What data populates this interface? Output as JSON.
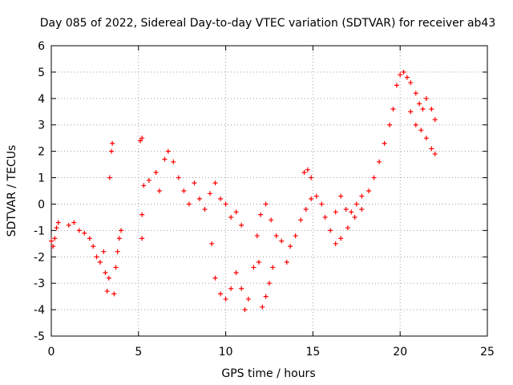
{
  "chart_data": {
    "type": "scatter",
    "title": "Day 085 of 2022, Sidereal Day-to-day VTEC variation (SDTVAR) for receiver ab43",
    "xlabel": "GPS time / hours",
    "ylabel": "SDTVAR / TECUs",
    "xlim": [
      0,
      25
    ],
    "ylim": [
      -5,
      6
    ],
    "xticks": [
      "0",
      "5",
      "10",
      "15",
      "20",
      "25"
    ],
    "yticks": [
      "-5",
      "-4",
      "-3",
      "-2",
      "-1",
      "0",
      "1",
      "2",
      "3",
      "4",
      "5",
      "6"
    ],
    "grid": true,
    "marker": "+",
    "color": "#ff0000",
    "series": [
      {
        "name": "SDTVAR",
        "points": [
          [
            0.0,
            -1.4
          ],
          [
            0.1,
            -1.6
          ],
          [
            0.2,
            -1.3
          ],
          [
            0.3,
            -0.9
          ],
          [
            0.4,
            -0.7
          ],
          [
            1.0,
            -0.8
          ],
          [
            1.3,
            -0.7
          ],
          [
            1.6,
            -1.0
          ],
          [
            1.9,
            -1.1
          ],
          [
            2.2,
            -1.3
          ],
          [
            2.4,
            -1.6
          ],
          [
            2.6,
            -2.0
          ],
          [
            2.8,
            -2.2
          ],
          [
            3.0,
            -1.8
          ],
          [
            3.1,
            -2.6
          ],
          [
            3.2,
            -3.3
          ],
          [
            3.3,
            -2.8
          ],
          [
            3.35,
            1.0
          ],
          [
            3.45,
            2.0
          ],
          [
            3.5,
            2.3
          ],
          [
            3.6,
            -3.4
          ],
          [
            3.7,
            -2.4
          ],
          [
            3.8,
            -1.8
          ],
          [
            3.9,
            -1.3
          ],
          [
            4.0,
            -1.0
          ],
          [
            5.1,
            2.4
          ],
          [
            5.2,
            2.5
          ],
          [
            5.3,
            0.7
          ],
          [
            5.2,
            -0.4
          ],
          [
            5.2,
            -1.3
          ],
          [
            5.6,
            0.9
          ],
          [
            6.0,
            1.2
          ],
          [
            6.2,
            0.5
          ],
          [
            6.5,
            1.7
          ],
          [
            6.7,
            2.0
          ],
          [
            7.0,
            1.6
          ],
          [
            7.3,
            1.0
          ],
          [
            7.6,
            0.5
          ],
          [
            7.9,
            0.0
          ],
          [
            8.2,
            0.8
          ],
          [
            8.5,
            0.2
          ],
          [
            8.8,
            -0.2
          ],
          [
            9.1,
            0.4
          ],
          [
            9.4,
            0.8
          ],
          [
            9.7,
            0.2
          ],
          [
            10.0,
            0.0
          ],
          [
            10.3,
            -0.5
          ],
          [
            10.6,
            -0.3
          ],
          [
            10.9,
            -0.8
          ],
          [
            9.2,
            -1.5
          ],
          [
            9.4,
            -2.8
          ],
          [
            9.7,
            -3.4
          ],
          [
            10.0,
            -3.6
          ],
          [
            10.3,
            -3.2
          ],
          [
            10.6,
            -2.6
          ],
          [
            10.9,
            -3.2
          ],
          [
            11.1,
            -4.0
          ],
          [
            11.3,
            -3.6
          ],
          [
            11.6,
            -2.4
          ],
          [
            11.9,
            -2.2
          ],
          [
            12.1,
            -3.9
          ],
          [
            12.3,
            -3.5
          ],
          [
            12.5,
            -3.0
          ],
          [
            12.7,
            -2.4
          ],
          [
            11.8,
            -1.2
          ],
          [
            12.0,
            -0.4
          ],
          [
            12.3,
            0.0
          ],
          [
            12.6,
            -0.6
          ],
          [
            12.9,
            -1.2
          ],
          [
            13.2,
            -1.4
          ],
          [
            13.5,
            -2.2
          ],
          [
            13.7,
            -1.6
          ],
          [
            14.0,
            -1.2
          ],
          [
            14.3,
            -0.6
          ],
          [
            14.6,
            -0.2
          ],
          [
            14.9,
            0.2
          ],
          [
            14.5,
            1.2
          ],
          [
            14.7,
            1.3
          ],
          [
            14.9,
            1.0
          ],
          [
            15.2,
            0.3
          ],
          [
            15.5,
            0.0
          ],
          [
            15.7,
            -0.5
          ],
          [
            16.0,
            -1.0
          ],
          [
            16.3,
            -0.3
          ],
          [
            16.6,
            0.3
          ],
          [
            16.9,
            -0.2
          ],
          [
            17.2,
            -0.3
          ],
          [
            17.5,
            0.0
          ],
          [
            17.8,
            0.3
          ],
          [
            16.3,
            -1.5
          ],
          [
            16.6,
            -1.3
          ],
          [
            17.0,
            -0.9
          ],
          [
            17.4,
            -0.5
          ],
          [
            17.8,
            -0.2
          ],
          [
            18.2,
            0.5
          ],
          [
            18.5,
            1.0
          ],
          [
            18.8,
            1.6
          ],
          [
            19.1,
            2.3
          ],
          [
            19.4,
            3.0
          ],
          [
            19.6,
            3.6
          ],
          [
            19.8,
            4.5
          ],
          [
            20.0,
            4.9
          ],
          [
            20.2,
            5.0
          ],
          [
            20.4,
            4.8
          ],
          [
            20.6,
            4.6
          ],
          [
            20.9,
            4.2
          ],
          [
            21.1,
            3.8
          ],
          [
            21.3,
            3.6
          ],
          [
            21.5,
            4.0
          ],
          [
            21.8,
            3.6
          ],
          [
            22.0,
            3.2
          ],
          [
            20.6,
            3.5
          ],
          [
            20.9,
            3.0
          ],
          [
            21.2,
            2.8
          ],
          [
            21.5,
            2.5
          ],
          [
            21.8,
            2.1
          ],
          [
            22.0,
            1.9
          ]
        ]
      }
    ]
  }
}
